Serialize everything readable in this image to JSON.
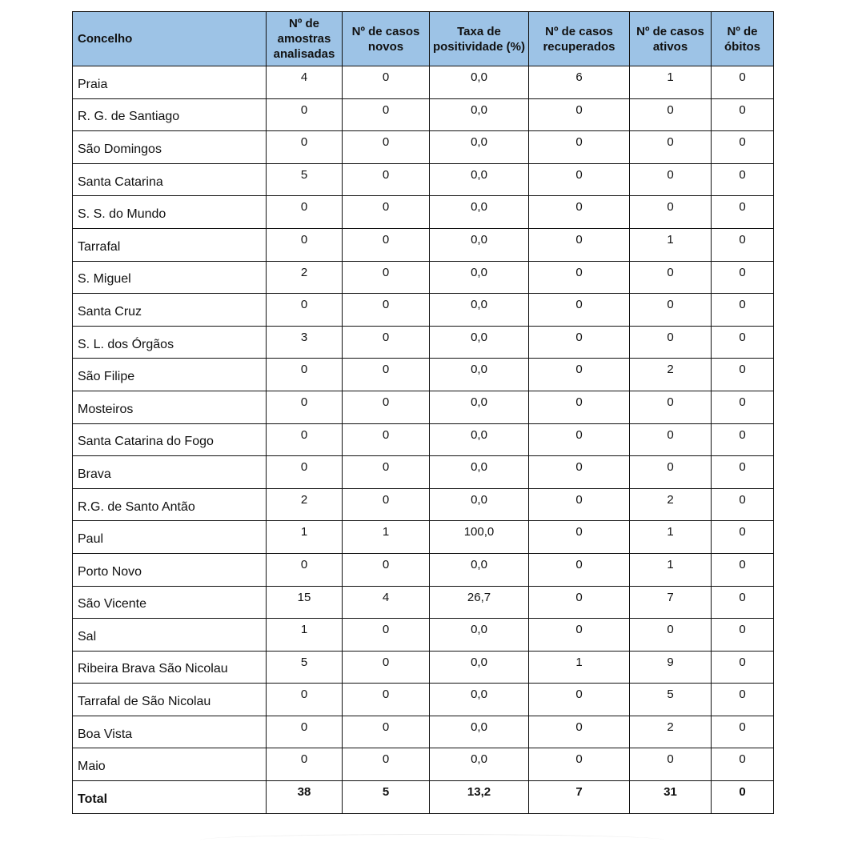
{
  "headers": [
    "Concelho",
    "Nº de amostras analisadas",
    "Nº de casos novos",
    "Taxa de positividade (%)",
    "Nº de casos recuperados",
    "Nº de casos ativos",
    "Nº de óbitos"
  ],
  "rows": [
    [
      "Praia",
      "4",
      "0",
      "0,0",
      "6",
      "1",
      "0"
    ],
    [
      "R. G. de Santiago",
      "0",
      "0",
      "0,0",
      "0",
      "0",
      "0"
    ],
    [
      "São Domingos",
      "0",
      "0",
      "0,0",
      "0",
      "0",
      "0"
    ],
    [
      "Santa Catarina",
      "5",
      "0",
      "0,0",
      "0",
      "0",
      "0"
    ],
    [
      "S. S. do Mundo",
      "0",
      "0",
      "0,0",
      "0",
      "0",
      "0"
    ],
    [
      "Tarrafal",
      "0",
      "0",
      "0,0",
      "0",
      "1",
      "0"
    ],
    [
      "S. Miguel",
      "2",
      "0",
      "0,0",
      "0",
      "0",
      "0"
    ],
    [
      "Santa Cruz",
      "0",
      "0",
      "0,0",
      "0",
      "0",
      "0"
    ],
    [
      "S. L. dos Órgãos",
      "3",
      "0",
      "0,0",
      "0",
      "0",
      "0"
    ],
    [
      "São Filipe",
      "0",
      "0",
      "0,0",
      "0",
      "2",
      "0"
    ],
    [
      "Mosteiros",
      "0",
      "0",
      "0,0",
      "0",
      "0",
      "0"
    ],
    [
      "Santa Catarina do Fogo",
      "0",
      "0",
      "0,0",
      "0",
      "0",
      "0"
    ],
    [
      "Brava",
      "0",
      "0",
      "0,0",
      "0",
      "0",
      "0"
    ],
    [
      "R.G. de Santo Antão",
      "2",
      "0",
      "0,0",
      "0",
      "2",
      "0"
    ],
    [
      "Paul",
      "1",
      "1",
      "100,0",
      "0",
      "1",
      "0"
    ],
    [
      "Porto Novo",
      "0",
      "0",
      "0,0",
      "0",
      "1",
      "0"
    ],
    [
      "São Vicente",
      "15",
      "4",
      "26,7",
      "0",
      "7",
      "0"
    ],
    [
      "Sal",
      "1",
      "0",
      "0,0",
      "0",
      "0",
      "0"
    ],
    [
      "Ribeira Brava São Nicolau",
      "5",
      "0",
      "0,0",
      "1",
      "9",
      "0"
    ],
    [
      "Tarrafal de São Nicolau",
      "0",
      "0",
      "0,0",
      "0",
      "5",
      "0"
    ],
    [
      "Boa Vista",
      "0",
      "0",
      "0,0",
      "0",
      "2",
      "0"
    ],
    [
      "Maio",
      "0",
      "0",
      "0,0",
      "0",
      "0",
      "0"
    ]
  ],
  "total": [
    "Total",
    "38",
    "5",
    "13,2",
    "7",
    "31",
    "0"
  ],
  "colors": {
    "header_bg": "#9dc3e6",
    "border": "#111111"
  }
}
